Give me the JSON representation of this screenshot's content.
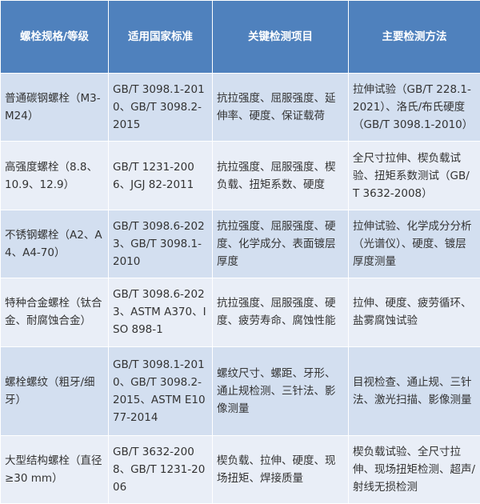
{
  "table": {
    "header": [
      "螺栓规格/等级",
      "适用国家标准",
      "关键检测项目",
      "主要检测方法"
    ],
    "rows": [
      [
        "普通碳钢螺栓（M3-M24）",
        "GB/T 3098.1-2010、GB/T 3098.2-2015",
        "抗拉强度、屈服强度、延伸率、硬度、保证载荷",
        "拉伸试验（GB/T 228.1-2021）、洛氏/布氏硬度（GB/T 3098.1-2010）"
      ],
      [
        "高强度螺栓（8.8、10.9、12.9）",
        "GB/T 1231-2006、JGJ 82-2011",
        "抗拉强度、屈服强度、楔负载、扭矩系数、硬度",
        "全尺寸拉伸、楔负载试验、扭矩系数测试（GB/T 3632-2008）"
      ],
      [
        "不锈钢螺栓（A2、A4、A4-70）",
        "GB/T 3098.6-2023、GB/T 3098.1-2010",
        "抗拉强度、屈服强度、硬度、化学成分、表面镀层厚度",
        "拉伸试验、化学成分分析（光谱仪）、硬度、镀层厚度测量"
      ],
      [
        "特种合金螺栓（钛合金、耐腐蚀合金）",
        "GB/T 3098.6-2023、ASTM A370、ISO 898-1",
        "抗拉强度、屈服强度、硬度、疲劳寿命、腐蚀性能",
        "拉伸、硬度、疲劳循环、盐雾腐蚀试验"
      ],
      [
        "螺栓螺纹（粗牙/细牙）",
        "GB/T 3098.1-2010、GB/T 3098.2-2015、ASTM E1077-2014",
        "螺纹尺寸、螺距、牙形、通止规检测、三针法、影像测量",
        "目视检查、通止规、三针法、激光扫描、影像测量"
      ],
      [
        "大型结构螺栓（直径≥30 mm）",
        "GB/T 3632-2008、GB/T 1231-2006",
        "楔负载、拉伸、硬度、现场扭矩、焊接质量",
        "楔负载试验、全尺寸拉伸、现场扭矩检测、超声/射线无损检测"
      ]
    ]
  }
}
